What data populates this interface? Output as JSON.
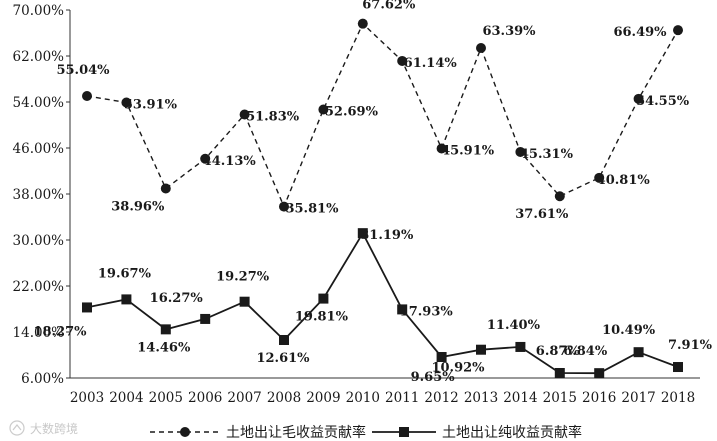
{
  "chart_data": {
    "type": "line",
    "title": "",
    "xlabel": "",
    "ylabel": "",
    "ylim": [
      6,
      70
    ],
    "y_ticks": [
      "6.00%",
      "14.00%",
      "22.00%",
      "30.00%",
      "38.00%",
      "46.00%",
      "54.00%",
      "62.00%",
      "70.00%"
    ],
    "categories": [
      "2003",
      "2004",
      "2005",
      "2006",
      "2007",
      "2008",
      "2009",
      "2010",
      "2011",
      "2012",
      "2013",
      "2014",
      "2015",
      "2016",
      "2017",
      "2018"
    ],
    "grid": false,
    "legend_position": "bottom",
    "series": [
      {
        "name": "土地出让毛收益贡献率",
        "style": "dashed",
        "marker": "circle",
        "color": "#1a1a1a",
        "values": [
          55.04,
          53.91,
          38.96,
          44.13,
          51.83,
          35.81,
          52.69,
          67.62,
          61.14,
          45.91,
          63.39,
          45.31,
          37.61,
          40.81,
          54.55,
          66.49
        ],
        "labels": [
          "55.04%",
          "53.91%",
          "38.96%",
          "44.13%",
          "51.83%",
          "35.81%",
          "52.69%",
          "67.62%",
          "61.14%",
          "45.91%",
          "63.39%",
          "45.31%",
          "37.61%",
          "40.81%",
          "54.55%",
          "66.49%"
        ]
      },
      {
        "name": "土地出让纯收益贡献率",
        "style": "solid",
        "marker": "square",
        "color": "#1a1a1a",
        "values": [
          18.27,
          19.67,
          14.46,
          16.27,
          19.27,
          12.61,
          19.81,
          31.19,
          17.93,
          9.65,
          10.92,
          11.4,
          6.87,
          6.84,
          10.49,
          7.91
        ],
        "labels": [
          "18.27%",
          "19.67%",
          "14.46%",
          "16.27%",
          "19.27%",
          "12.61%",
          "19.81%",
          "31.19%",
          "17.93%",
          "9.65%",
          "10.92%",
          "11.40%",
          "6.87%",
          "6.84%",
          "10.49%",
          "7.91%"
        ]
      }
    ]
  },
  "watermark": {
    "text": "大数跨境",
    "icon": "watermark-logo-icon"
  }
}
